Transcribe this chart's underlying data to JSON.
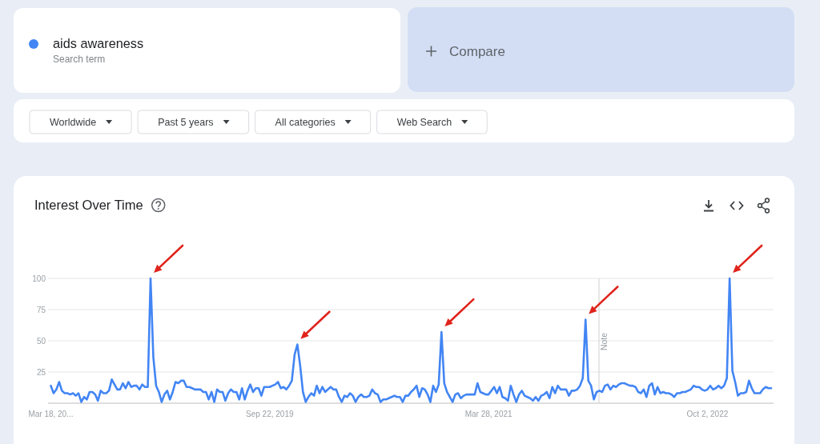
{
  "chart_data": {
    "type": "line",
    "title": "Interest Over Time",
    "legend": "top left",
    "legend_title": "Search term",
    "grid": "y",
    "xlim": [
      "2018-03-11",
      "2023-03-18"
    ],
    "ylim": [
      0,
      100
    ],
    "yticks": [
      25,
      50,
      75,
      100
    ],
    "xticks": [
      {
        "value": "2018-03-18",
        "label": "Mar 18, 20..."
      },
      {
        "value": "2019-09-22",
        "label": "Sep 22, 2019"
      },
      {
        "value": "2021-03-28",
        "label": "Mar 28, 2021"
      },
      {
        "value": "2022-10-02",
        "label": "Oct 2, 2022"
      }
    ],
    "ref_lines": [
      {
        "axis": "x",
        "value": "2022-01-01",
        "label": "Note"
      }
    ],
    "annotations": [
      "Compare",
      "Worldwide",
      "Past 5 years",
      "All categories",
      "Web Search"
    ],
    "x": [
      "2018-03-18",
      "2018-03-25",
      "2018-04-01",
      "2018-04-08",
      "2018-04-15",
      "2018-04-22",
      "2018-04-29",
      "2018-05-06",
      "2018-05-13",
      "2018-05-20",
      "2018-05-27",
      "2018-06-03",
      "2018-06-10",
      "2018-06-17",
      "2018-06-24",
      "2018-07-01",
      "2018-07-08",
      "2018-07-15",
      "2018-07-22",
      "2018-07-29",
      "2018-08-05",
      "2018-08-12",
      "2018-08-19",
      "2018-08-26",
      "2018-09-02",
      "2018-09-09",
      "2018-09-16",
      "2018-09-23",
      "2018-09-30",
      "2018-10-07",
      "2018-10-14",
      "2018-10-21",
      "2018-10-28",
      "2018-11-04",
      "2018-11-11",
      "2018-11-18",
      "2018-11-25",
      "2018-12-02",
      "2018-12-09",
      "2018-12-16",
      "2018-12-23",
      "2018-12-30",
      "2019-01-06",
      "2019-01-13",
      "2019-01-20",
      "2019-01-27",
      "2019-02-03",
      "2019-02-10",
      "2019-02-17",
      "2019-02-24",
      "2019-03-03",
      "2019-03-10",
      "2019-03-17",
      "2019-03-24",
      "2019-03-31",
      "2019-04-07",
      "2019-04-14",
      "2019-04-21",
      "2019-04-28",
      "2019-05-05",
      "2019-05-12",
      "2019-05-19",
      "2019-05-26",
      "2019-06-02",
      "2019-06-09",
      "2019-06-16",
      "2019-06-23",
      "2019-06-30",
      "2019-07-07",
      "2019-07-14",
      "2019-07-21",
      "2019-07-28",
      "2019-08-04",
      "2019-08-11",
      "2019-08-18",
      "2019-08-25",
      "2019-09-01",
      "2019-09-08",
      "2019-09-15",
      "2019-09-22",
      "2019-09-29",
      "2019-10-06",
      "2019-10-13",
      "2019-10-20",
      "2019-10-27",
      "2019-11-03",
      "2019-11-10",
      "2019-11-17",
      "2019-11-24",
      "2019-12-01",
      "2019-12-08",
      "2019-12-15",
      "2019-12-22",
      "2019-12-29",
      "2020-01-05",
      "2020-01-12",
      "2020-01-19",
      "2020-01-26",
      "2020-02-02",
      "2020-02-09",
      "2020-02-16",
      "2020-02-23",
      "2020-03-01",
      "2020-03-08",
      "2020-03-15",
      "2020-03-22",
      "2020-03-29",
      "2020-04-05",
      "2020-04-12",
      "2020-04-19",
      "2020-04-26",
      "2020-05-03",
      "2020-05-10",
      "2020-05-17",
      "2020-05-24",
      "2020-05-31",
      "2020-06-07",
      "2020-06-14",
      "2020-06-21",
      "2020-06-28",
      "2020-07-05",
      "2020-07-12",
      "2020-07-19",
      "2020-07-26",
      "2020-08-02",
      "2020-08-09",
      "2020-08-16",
      "2020-08-23",
      "2020-08-30",
      "2020-09-06",
      "2020-09-13",
      "2020-09-20",
      "2020-09-27",
      "2020-10-04",
      "2020-10-11",
      "2020-10-18",
      "2020-10-25",
      "2020-11-01",
      "2020-11-08",
      "2020-11-15",
      "2020-11-22",
      "2020-11-29",
      "2020-12-06",
      "2020-12-13",
      "2020-12-20",
      "2020-12-27",
      "2021-01-03",
      "2021-01-10",
      "2021-01-17",
      "2021-01-24",
      "2021-01-31",
      "2021-02-07",
      "2021-02-14",
      "2021-02-21",
      "2021-02-28",
      "2021-03-07",
      "2021-03-14",
      "2021-03-21",
      "2021-03-28",
      "2021-04-04",
      "2021-04-11",
      "2021-04-18",
      "2021-04-25",
      "2021-05-02",
      "2021-05-09",
      "2021-05-16",
      "2021-05-23",
      "2021-05-30",
      "2021-06-06",
      "2021-06-13",
      "2021-06-20",
      "2021-06-27",
      "2021-07-04",
      "2021-07-11",
      "2021-07-18",
      "2021-07-25",
      "2021-08-01",
      "2021-08-08",
      "2021-08-15",
      "2021-08-22",
      "2021-08-29",
      "2021-09-05",
      "2021-09-12",
      "2021-09-19",
      "2021-09-26",
      "2021-10-03",
      "2021-10-10",
      "2021-10-17",
      "2021-10-24",
      "2021-10-31",
      "2021-11-07",
      "2021-11-14",
      "2021-11-21",
      "2021-11-28",
      "2021-12-05",
      "2021-12-12",
      "2021-12-19",
      "2021-12-26",
      "2022-01-02",
      "2022-01-09",
      "2022-01-16",
      "2022-01-23",
      "2022-01-30",
      "2022-02-06",
      "2022-02-13",
      "2022-02-20",
      "2022-02-27",
      "2022-03-06",
      "2022-03-13",
      "2022-03-20",
      "2022-03-27",
      "2022-04-03",
      "2022-04-10",
      "2022-04-17",
      "2022-04-24",
      "2022-05-01",
      "2022-05-08",
      "2022-05-15",
      "2022-05-22",
      "2022-05-29",
      "2022-06-05",
      "2022-06-12",
      "2022-06-19",
      "2022-06-26",
      "2022-07-03",
      "2022-07-10",
      "2022-07-17",
      "2022-07-24",
      "2022-07-31",
      "2022-08-07",
      "2022-08-14",
      "2022-08-21",
      "2022-08-28",
      "2022-09-04",
      "2022-09-11",
      "2022-09-18",
      "2022-09-25",
      "2022-10-02",
      "2022-10-09",
      "2022-10-16",
      "2022-10-23",
      "2022-10-30",
      "2022-11-06",
      "2022-11-13",
      "2022-11-20",
      "2022-11-27",
      "2022-12-04",
      "2022-12-11",
      "2022-12-18",
      "2022-12-25",
      "2023-01-01",
      "2023-01-08",
      "2023-01-15",
      "2023-01-22",
      "2023-01-29",
      "2023-02-05",
      "2023-02-12",
      "2023-02-19",
      "2023-02-26",
      "2023-03-05",
      "2023-03-12"
    ],
    "series": [
      {
        "name": "aids awareness",
        "color": "#4285f4",
        "values": [
          14,
          8,
          11,
          17,
          10,
          8,
          8,
          7,
          8,
          6,
          8,
          1,
          5,
          3,
          9,
          9,
          7,
          2,
          10,
          8,
          8,
          10,
          19,
          15,
          11,
          11,
          16,
          12,
          17,
          13,
          14,
          14,
          11,
          15,
          13,
          13,
          100,
          37,
          14,
          9,
          1,
          7,
          10,
          3,
          9,
          17,
          16,
          18,
          18,
          13,
          13,
          12,
          11,
          11,
          11,
          9,
          9,
          3,
          9,
          1,
          11,
          9,
          9,
          2,
          8,
          11,
          9,
          9,
          3,
          12,
          3,
          10,
          15,
          9,
          12,
          12,
          6,
          13,
          13,
          13,
          14,
          15,
          17,
          12,
          13,
          11,
          14,
          18,
          39,
          47,
          30,
          9,
          1,
          5,
          8,
          6,
          14,
          8,
          13,
          9,
          11,
          13,
          11,
          11,
          5,
          1,
          6,
          5,
          8,
          6,
          1,
          5,
          7,
          5,
          5,
          6,
          11,
          8,
          7,
          1,
          3,
          3,
          4,
          5,
          6,
          5,
          5,
          1,
          6,
          6,
          9,
          11,
          14,
          5,
          12,
          11,
          7,
          1,
          14,
          9,
          15,
          57,
          16,
          9,
          5,
          1,
          7,
          8,
          4,
          6,
          7,
          7,
          7,
          7,
          16,
          9,
          8,
          7,
          7,
          10,
          13,
          8,
          13,
          5,
          4,
          2,
          14,
          7,
          1,
          7,
          10,
          6,
          5,
          4,
          2,
          5,
          2,
          6,
          7,
          9,
          4,
          13,
          8,
          14,
          11,
          11,
          11,
          6,
          10,
          10,
          11,
          14,
          20,
          67,
          18,
          14,
          3,
          9,
          10,
          9,
          14,
          15,
          11,
          14,
          13,
          15,
          16,
          16,
          15,
          14,
          14,
          13,
          9,
          8,
          11,
          5,
          14,
          16,
          7,
          13,
          8,
          9,
          8,
          8,
          7,
          5,
          8,
          8,
          9,
          9,
          10,
          11,
          14,
          13,
          13,
          11,
          10,
          11,
          14,
          11,
          12,
          14,
          12,
          14,
          20,
          100,
          26,
          17,
          6,
          8,
          8,
          9,
          18,
          12,
          8,
          8,
          8,
          11,
          13,
          12,
          12
        ]
      }
    ]
  }
}
